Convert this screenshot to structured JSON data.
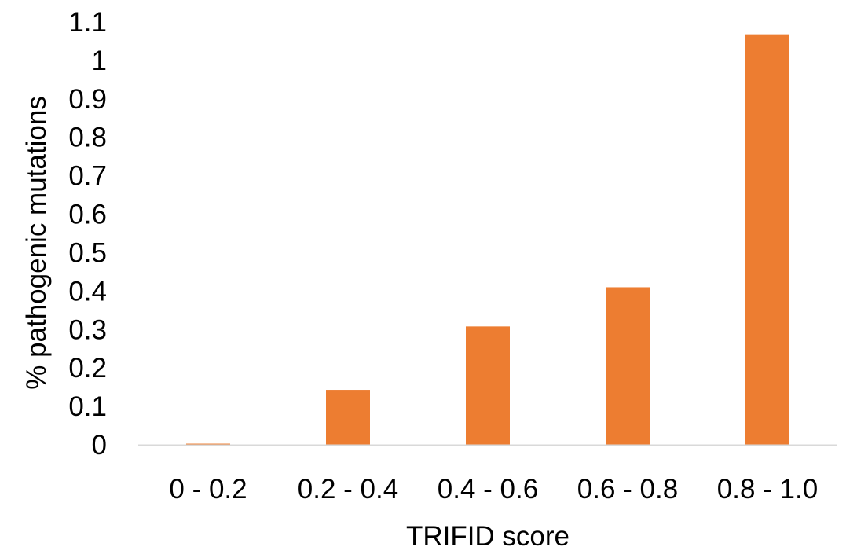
{
  "chart_data": {
    "type": "bar",
    "title": "",
    "xlabel": "TRIFID score",
    "ylabel": "% pathogenic mutations",
    "categories": [
      "0 - 0.2",
      "0.2 - 0.4",
      "0.4 - 0.6",
      "0.6 - 0.8",
      "0.8 - 1.0"
    ],
    "values": [
      0.003,
      0.143,
      0.308,
      0.41,
      1.068
    ],
    "ylim": [
      0,
      1.1
    ],
    "yticks": [
      "0",
      "0.1",
      "0.2",
      "0.3",
      "0.4",
      "0.5",
      "0.6",
      "0.7",
      "0.8",
      "0.9",
      "1",
      "1.1"
    ],
    "bar_color": "#ED7D31",
    "axis_color": "#D9D9D9",
    "grid": false,
    "legend": "none"
  }
}
